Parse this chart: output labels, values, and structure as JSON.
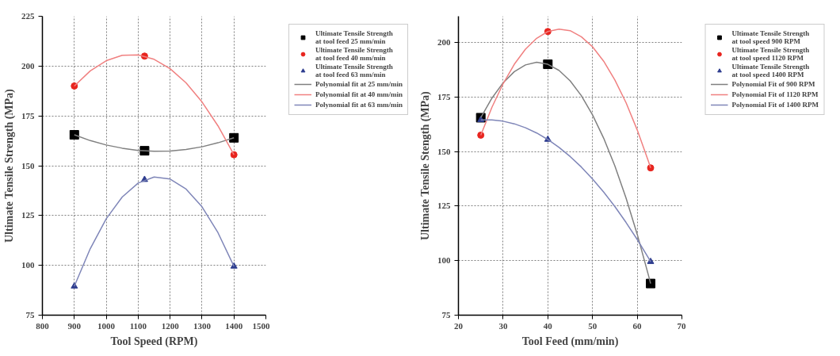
{
  "chart_data": [
    {
      "type": "line",
      "xlabel": "Tool Speed (RPM)",
      "ylabel": "Ultimate Tensile Strength (MPa)",
      "xlim": [
        800,
        1500
      ],
      "xticks": [
        800,
        900,
        1000,
        1100,
        1200,
        1300,
        1400,
        1500
      ],
      "ylim": [
        75,
        225
      ],
      "yticks": [
        75,
        100,
        125,
        150,
        175,
        200,
        225
      ],
      "grid": true,
      "legend": "top right",
      "series": [
        {
          "name": "Ultimate Tensile Strength\nat tool feed 25 mm/min",
          "type": "scatter",
          "marker": "square",
          "color": "#000000",
          "x": [
            900,
            1120,
            1400
          ],
          "values": [
            165.5,
            157.5,
            164
          ]
        },
        {
          "name": "Ultimate Tensile Strength\nat tool feed 40 mm/min",
          "type": "scatter",
          "marker": "circle",
          "color": "#e8251f",
          "x": [
            900,
            1120,
            1400
          ],
          "values": [
            190,
            205,
            155.5
          ]
        },
        {
          "name": "Ultimate Tensile Strength\nat tool feed 63 mm/min",
          "type": "scatter",
          "marker": "triangle",
          "color": "#2e3d8f",
          "x": [
            900,
            1120,
            1400
          ],
          "values": [
            89.5,
            143,
            99.5
          ]
        },
        {
          "name": "Polynomial fit at 25 mm/min",
          "color": "#808080",
          "x": [
            900,
            950,
            1000,
            1050,
            1100,
            1150,
            1200,
            1250,
            1300,
            1350,
            1400
          ],
          "values": [
            165.5,
            162.6,
            160.4,
            158.8,
            157.7,
            157.3,
            157.4,
            158.2,
            159.5,
            161.5,
            164
          ]
        },
        {
          "name": "Polynomial fit at 40 mm/min",
          "color": "#f08080",
          "x": [
            900,
            950,
            1000,
            1050,
            1100,
            1150,
            1200,
            1250,
            1300,
            1350,
            1400
          ],
          "values": [
            190,
            197.6,
            202.7,
            205.4,
            205.6,
            203.4,
            198.7,
            191.6,
            182,
            170,
            155.5
          ]
        },
        {
          "name": "Polynomial fit at 63 mm/min",
          "color": "#7f86b8",
          "x": [
            900,
            950,
            1000,
            1050,
            1100,
            1150,
            1200,
            1250,
            1300,
            1350,
            1400
          ],
          "values": [
            89.5,
            108.4,
            123.4,
            134.3,
            141.3,
            144.3,
            143.3,
            138.3,
            129.4,
            116.4,
            99.5
          ]
        }
      ]
    },
    {
      "type": "line",
      "xlabel": "Tool Feed (mm/min)",
      "ylabel": "Ultimate Tensile Stength (MPa)",
      "xlim": [
        20,
        70
      ],
      "xticks": [
        20,
        30,
        40,
        50,
        60,
        70
      ],
      "ylim": [
        75,
        212
      ],
      "yticks": [
        75,
        100,
        125,
        150,
        175,
        200
      ],
      "grid": true,
      "legend": "top right",
      "series": [
        {
          "name": "Ultimate Tensile Strength\nat tool speed 900 RPM",
          "type": "scatter",
          "marker": "square",
          "color": "#000000",
          "x": [
            25,
            40,
            63
          ],
          "values": [
            165.5,
            190,
            89.5
          ]
        },
        {
          "name": "Ultimate Tensile Strength\nat tool speed 1120 RPM",
          "type": "scatter",
          "marker": "circle",
          "color": "#e8251f",
          "x": [
            25,
            40,
            63
          ],
          "values": [
            157.5,
            205,
            142.5
          ]
        },
        {
          "name": "Ultimate Tensile Strength\nat tool speed 1400 RPM",
          "type": "scatter",
          "marker": "triangle",
          "color": "#2e3d8f",
          "x": [
            25,
            40,
            63
          ],
          "values": [
            164.5,
            155.5,
            99.5
          ]
        },
        {
          "name": "Polynomial Fit of 900 RPM",
          "color": "#808080",
          "x": [
            25,
            27.5,
            30,
            32.5,
            35,
            37.5,
            40,
            42.5,
            45,
            47.5,
            50,
            52.5,
            55,
            57.5,
            60,
            62.5,
            63
          ],
          "values": [
            165.5,
            174.5,
            181.5,
            186.6,
            189.7,
            190.9,
            190,
            187.2,
            182.4,
            175.6,
            166.8,
            156.1,
            143.4,
            128.7,
            112.1,
            93.4,
            89.5
          ]
        },
        {
          "name": "Polynomial Fit of 1120 RPM",
          "color": "#f08080",
          "x": [
            25,
            27.5,
            30,
            32.5,
            35,
            37.5,
            40,
            42.5,
            45,
            47.5,
            50,
            52.5,
            55,
            57.5,
            60,
            62.5,
            63
          ],
          "values": [
            157.5,
            170.3,
            181.1,
            190,
            196.9,
            201.9,
            205,
            206.1,
            205.4,
            202.6,
            198,
            191.4,
            182.8,
            172.4,
            159.9,
            145.6,
            142.5
          ]
        },
        {
          "name": "Polynomial Fit of 1400 RPM",
          "color": "#7f86b8",
          "x": [
            25,
            27.5,
            30,
            32.5,
            35,
            37.5,
            40,
            42.5,
            45,
            47.5,
            50,
            52.5,
            55,
            57.5,
            60,
            62.5,
            63
          ],
          "values": [
            164.5,
            164.5,
            163.9,
            162.7,
            160.9,
            158.5,
            155.5,
            151.9,
            147.7,
            142.9,
            137.4,
            131.4,
            124.8,
            117.5,
            109.7,
            101.3,
            99.5
          ]
        }
      ]
    }
  ]
}
